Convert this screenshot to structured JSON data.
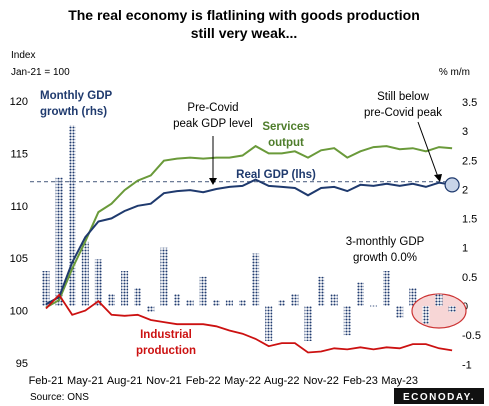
{
  "chart_data": {
    "type": "line",
    "title_lines": [
      "The real economy is flatlining with goods production",
      "still very weak..."
    ],
    "left_axis": {
      "label_lines": [
        "Index",
        "Jan-21 = 100"
      ],
      "ticks": [
        95,
        100,
        105,
        110,
        115,
        120
      ],
      "range": [
        95,
        120
      ]
    },
    "right_axis": {
      "label": "% m/m",
      "ticks": [
        "-1",
        "-0.5",
        "0",
        "0.5",
        "1",
        "1.5",
        "2",
        "2.5",
        "3",
        "3.5"
      ],
      "range": [
        -1,
        3.5
      ]
    },
    "x_ticks": [
      "Feb-21",
      "May-21",
      "Aug-21",
      "Nov-21",
      "Feb-22",
      "May-22",
      "Aug-22",
      "Nov-22",
      "Feb-23",
      "May-23"
    ],
    "source": "Source: ONS",
    "brand": "ECONODAY.",
    "series": {
      "real_gdp": [
        100.6,
        101.3,
        104.6,
        107.0,
        108.5,
        108.8,
        109.5,
        110.0,
        110.2,
        111.2,
        111.4,
        111.5,
        111.3,
        111.6,
        111.8,
        111.9,
        112.5,
        111.9,
        111.8,
        111.7,
        111.0,
        111.7,
        111.8,
        111.4,
        112.0,
        111.9,
        112.1,
        111.9,
        112.1,
        111.8,
        112.2,
        112.0
      ],
      "services": [
        100.3,
        101.0,
        104.0,
        106.6,
        109.4,
        110.2,
        111.5,
        112.4,
        112.9,
        114.3,
        114.5,
        114.6,
        114.5,
        114.6,
        114.6,
        114.8,
        115.7,
        115.0,
        115.0,
        115.2,
        114.6,
        115.3,
        115.5,
        114.6,
        115.2,
        115.6,
        115.7,
        115.4,
        115.5,
        115.2,
        115.6,
        115.5
      ],
      "industrial": [
        100.2,
        101.5,
        99.6,
        100.0,
        100.9,
        99.6,
        99.5,
        99.6,
        99.1,
        98.9,
        98.7,
        98.7,
        98.7,
        98.5,
        98.1,
        97.8,
        97.3,
        96.6,
        96.9,
        96.9,
        96.0,
        96.1,
        96.4,
        96.3,
        96.5,
        96.3,
        96.5,
        96.4,
        96.8,
        96.8,
        96.4,
        96.2
      ],
      "monthly_growth": [
        0.6,
        2.2,
        3.1,
        1.1,
        0.8,
        0.2,
        0.6,
        0.3,
        -0.1,
        1.0,
        0.2,
        0.1,
        0.5,
        0.1,
        0.1,
        0.1,
        0.9,
        -0.6,
        0.1,
        0.2,
        -0.6,
        0.5,
        0.2,
        -0.5,
        0.4,
        0.0,
        0.6,
        -0.2,
        0.3,
        -0.3,
        0.2,
        -0.1
      ],
      "precovid_peak": 112.3
    },
    "annotations": {
      "monthly_gdp": [
        "Monthly GDP",
        "growth (rhs)"
      ],
      "precovid": [
        "Pre-Covid",
        "peak GDP level"
      ],
      "services": [
        "Services",
        "output"
      ],
      "real_gdp": "Real GDP (lhs)",
      "below_peak": [
        "Still below",
        "pre-Covid peak"
      ],
      "three_month": [
        "3-monthly GDP",
        "growth 0.0%"
      ],
      "industrial": [
        "Industrial",
        "production"
      ]
    },
    "colors": {
      "real_gdp": "#1f3a6e",
      "services": "#6a9a3a",
      "industrial": "#cc1111",
      "bars": "#1f3a6e",
      "ellipse_fill": "#f7d6d6",
      "ellipse_stroke": "#cc3333"
    }
  }
}
